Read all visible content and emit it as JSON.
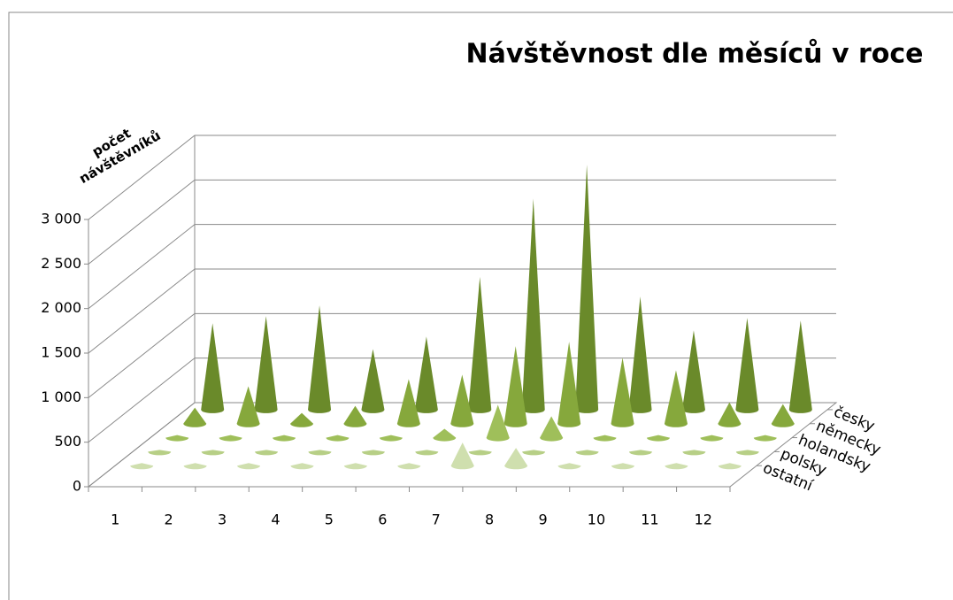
{
  "chart_data": {
    "type": "cone3d",
    "title": "Návštěvnost dle měsíců v roce",
    "y_label": "počet návštěvníků",
    "categories": [
      "1",
      "2",
      "3",
      "4",
      "5",
      "6",
      "7",
      "8",
      "9",
      "10",
      "11",
      "12"
    ],
    "series": [
      {
        "name": "česky",
        "color": "#6a8a2a",
        "values": [
          970,
          1050,
          1170,
          680,
          820,
          1490,
          2370,
          2750,
          1270,
          890,
          1030,
          1000
        ]
      },
      {
        "name": "německy",
        "color": "#86a83c",
        "values": [
          180,
          420,
          120,
          200,
          500,
          550,
          870,
          920,
          740,
          600,
          240,
          220
        ]
      },
      {
        "name": "holandsky",
        "color": "#9fbf5a",
        "values": [
          30,
          30,
          30,
          30,
          30,
          100,
          370,
          240,
          30,
          30,
          30,
          30
        ]
      },
      {
        "name": "polsky",
        "color": "#b7cf86",
        "values": [
          20,
          20,
          20,
          20,
          20,
          20,
          20,
          20,
          20,
          20,
          20,
          20
        ]
      },
      {
        "name": "ostatní",
        "color": "#cfdfae",
        "values": [
          30,
          30,
          30,
          30,
          30,
          30,
          260,
          200,
          30,
          30,
          30,
          30
        ]
      }
    ],
    "ylim": [
      0,
      3000
    ],
    "yticks": [
      0,
      500,
      {
        "value": 1000,
        "label": "1 000"
      },
      {
        "value": 1500,
        "label": "1 500"
      },
      {
        "value": 2000,
        "label": "2 000"
      },
      {
        "value": 2500,
        "label": "2 500"
      },
      {
        "value": 3000,
        "label": "3 000"
      }
    ],
    "grid": true
  }
}
